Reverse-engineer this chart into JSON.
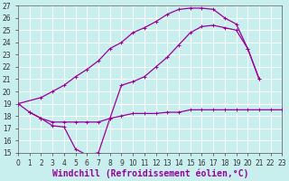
{
  "xlabel": "Windchill (Refroidissement éolien,°C)",
  "bg_color": "#c8eeee",
  "line_color": "#990099",
  "grid_color": "#ffffff",
  "xlim": [
    0,
    23
  ],
  "ylim": [
    15,
    27
  ],
  "xticks": [
    0,
    1,
    2,
    3,
    4,
    5,
    6,
    7,
    8,
    9,
    10,
    11,
    12,
    13,
    14,
    15,
    16,
    17,
    18,
    19,
    20,
    21,
    22,
    23
  ],
  "yticks": [
    15,
    16,
    17,
    18,
    19,
    20,
    21,
    22,
    23,
    24,
    25,
    26,
    27
  ],
  "curve_upper_x": [
    0,
    2,
    3,
    4,
    5,
    6,
    7,
    8,
    9,
    10,
    11,
    12,
    13,
    14,
    15,
    16,
    17,
    18,
    19,
    20,
    21,
    22,
    23
  ],
  "curve_upper_y": [
    19.0,
    19.5,
    20.0,
    20.5,
    21.2,
    21.8,
    22.5,
    23.5,
    24.0,
    24.8,
    25.2,
    25.7,
    26.3,
    26.7,
    26.8,
    26.8,
    26.7,
    26.0,
    25.5,
    23.5,
    21.0,
    null,
    null
  ],
  "curve_lower_x": [
    0,
    1,
    2,
    3,
    4,
    5,
    6,
    7,
    8,
    9,
    10,
    11,
    12,
    13,
    14,
    15,
    16,
    17,
    18,
    19,
    20,
    21
  ],
  "curve_lower_y": [
    19.0,
    18.3,
    17.8,
    17.2,
    17.1,
    15.3,
    14.8,
    15.0,
    17.8,
    20.5,
    20.8,
    21.2,
    22.0,
    22.8,
    23.8,
    24.8,
    25.3,
    25.4,
    25.2,
    25.0,
    23.5,
    21.0
  ],
  "curve_flat_x": [
    1,
    2,
    3,
    4,
    5,
    6,
    7,
    8,
    9,
    10,
    11,
    12,
    13,
    14,
    15,
    16,
    17,
    18,
    19,
    20,
    21,
    22,
    23
  ],
  "curve_flat_y": [
    18.3,
    17.8,
    17.5,
    17.5,
    17.5,
    17.5,
    17.5,
    17.8,
    18.0,
    18.2,
    18.2,
    18.2,
    18.3,
    18.3,
    18.5,
    18.5,
    18.5,
    18.5,
    18.5,
    18.5,
    18.5,
    18.5,
    18.5
  ],
  "linewidth": 0.9,
  "markersize": 3,
  "axis_fontsize": 7,
  "tick_fontsize": 5.5
}
